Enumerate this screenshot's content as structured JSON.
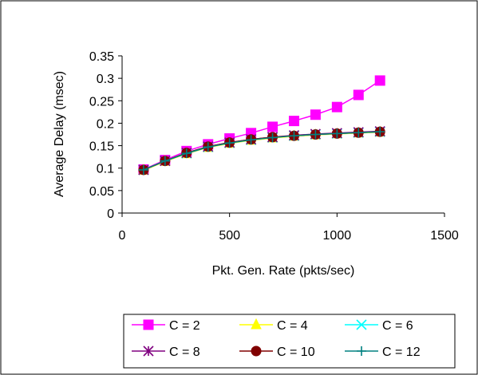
{
  "chart_data": {
    "type": "line",
    "title": "",
    "xlabel": "Pkt. Gen. Rate (pkts/sec)",
    "ylabel": "Average Delay (msec)",
    "xlim": [
      0,
      1500
    ],
    "ylim": [
      0,
      0.35
    ],
    "xticks": [
      0,
      500,
      1000,
      1500
    ],
    "xtick_labels": [
      "0",
      "500",
      "1000",
      "1500"
    ],
    "yticks": [
      0,
      0.05,
      0.1,
      0.15,
      0.2,
      0.25,
      0.3,
      0.35
    ],
    "ytick_labels": [
      "0",
      "0.05",
      "0.1",
      "0.15",
      "0.2",
      "0.25",
      "0.3",
      "0.35"
    ],
    "grid": false,
    "legend_position": "bottom",
    "x": [
      100,
      200,
      300,
      400,
      500,
      600,
      700,
      800,
      900,
      1000,
      1100,
      1200
    ],
    "series": [
      {
        "name": "C = 2",
        "color": "#FF00FF",
        "marker": "square",
        "values": [
          0.097,
          0.118,
          0.138,
          0.153,
          0.166,
          0.178,
          0.192,
          0.205,
          0.219,
          0.236,
          0.263,
          0.295
        ]
      },
      {
        "name": "C = 4",
        "color": "#FFFF00",
        "marker": "triangle",
        "values": [
          0.095,
          0.115,
          0.132,
          0.146,
          0.155,
          0.162,
          0.167,
          0.171,
          0.174,
          0.176,
          0.178,
          0.18
        ]
      },
      {
        "name": "C = 6",
        "color": "#00FFFF",
        "marker": "x",
        "values": [
          0.096,
          0.116,
          0.133,
          0.147,
          0.156,
          0.163,
          0.168,
          0.172,
          0.175,
          0.177,
          0.179,
          0.181
        ]
      },
      {
        "name": "C = 8",
        "color": "#800080",
        "marker": "star",
        "values": [
          0.096,
          0.116,
          0.134,
          0.148,
          0.157,
          0.164,
          0.169,
          0.173,
          0.176,
          0.178,
          0.18,
          0.182
        ]
      },
      {
        "name": "C = 10",
        "color": "#800000",
        "marker": "circle",
        "values": [
          0.096,
          0.116,
          0.134,
          0.148,
          0.157,
          0.164,
          0.169,
          0.172,
          0.175,
          0.177,
          0.179,
          0.181
        ]
      },
      {
        "name": "C = 12",
        "color": "#008080",
        "marker": "plus",
        "values": [
          0.096,
          0.116,
          0.133,
          0.147,
          0.156,
          0.163,
          0.168,
          0.172,
          0.175,
          0.177,
          0.179,
          0.181
        ]
      }
    ]
  }
}
